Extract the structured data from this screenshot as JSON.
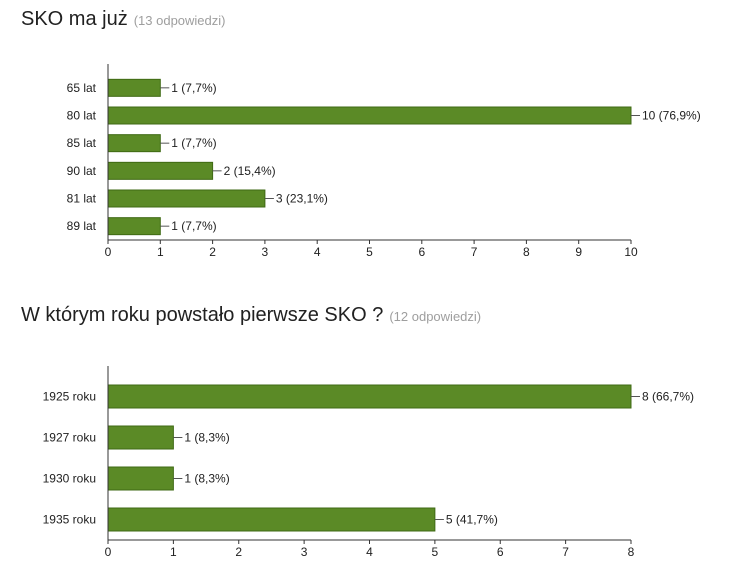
{
  "colors": {
    "bar": "#5b8a26",
    "axis": "#333333",
    "text": "#212121",
    "muted": "#9e9e9e"
  },
  "charts": [
    {
      "title": "SKO ma już",
      "responses": "(13 odpowiedzi)"
    },
    {
      "title": "W którym roku powstało pierwsze SKO ?",
      "responses": "(12 odpowiedzi)"
    }
  ],
  "chart_data": [
    {
      "type": "bar",
      "orientation": "horizontal",
      "title": "SKO ma już",
      "categories": [
        "65 lat",
        "80 lat",
        "85 lat",
        "90 lat",
        "81 lat",
        "89 lat"
      ],
      "values": [
        1,
        10,
        1,
        2,
        3,
        1
      ],
      "value_labels": [
        "1 (7,7%)",
        "10 (76,9%)",
        "1 (7,7%)",
        "2 (15,4%)",
        "3 (23,1%)",
        "1 (7,7%)"
      ],
      "xlim": [
        0,
        10
      ],
      "xticks": [
        0,
        1,
        2,
        3,
        4,
        5,
        6,
        7,
        8,
        9,
        10
      ],
      "grid": false,
      "legend": "none"
    },
    {
      "type": "bar",
      "orientation": "horizontal",
      "title": "W którym roku powstało pierwsze SKO ?",
      "categories": [
        "1925 roku",
        "1927 roku",
        "1930 roku",
        "1935 roku"
      ],
      "values": [
        8,
        1,
        1,
        5
      ],
      "value_labels": [
        "8 (66,7%)",
        "1 (8,3%)",
        "1 (8,3%)",
        "5 (41,7%)"
      ],
      "xlim": [
        0,
        8
      ],
      "xticks": [
        0,
        1,
        2,
        3,
        4,
        5,
        6,
        7,
        8
      ],
      "grid": false,
      "legend": "none"
    }
  ]
}
